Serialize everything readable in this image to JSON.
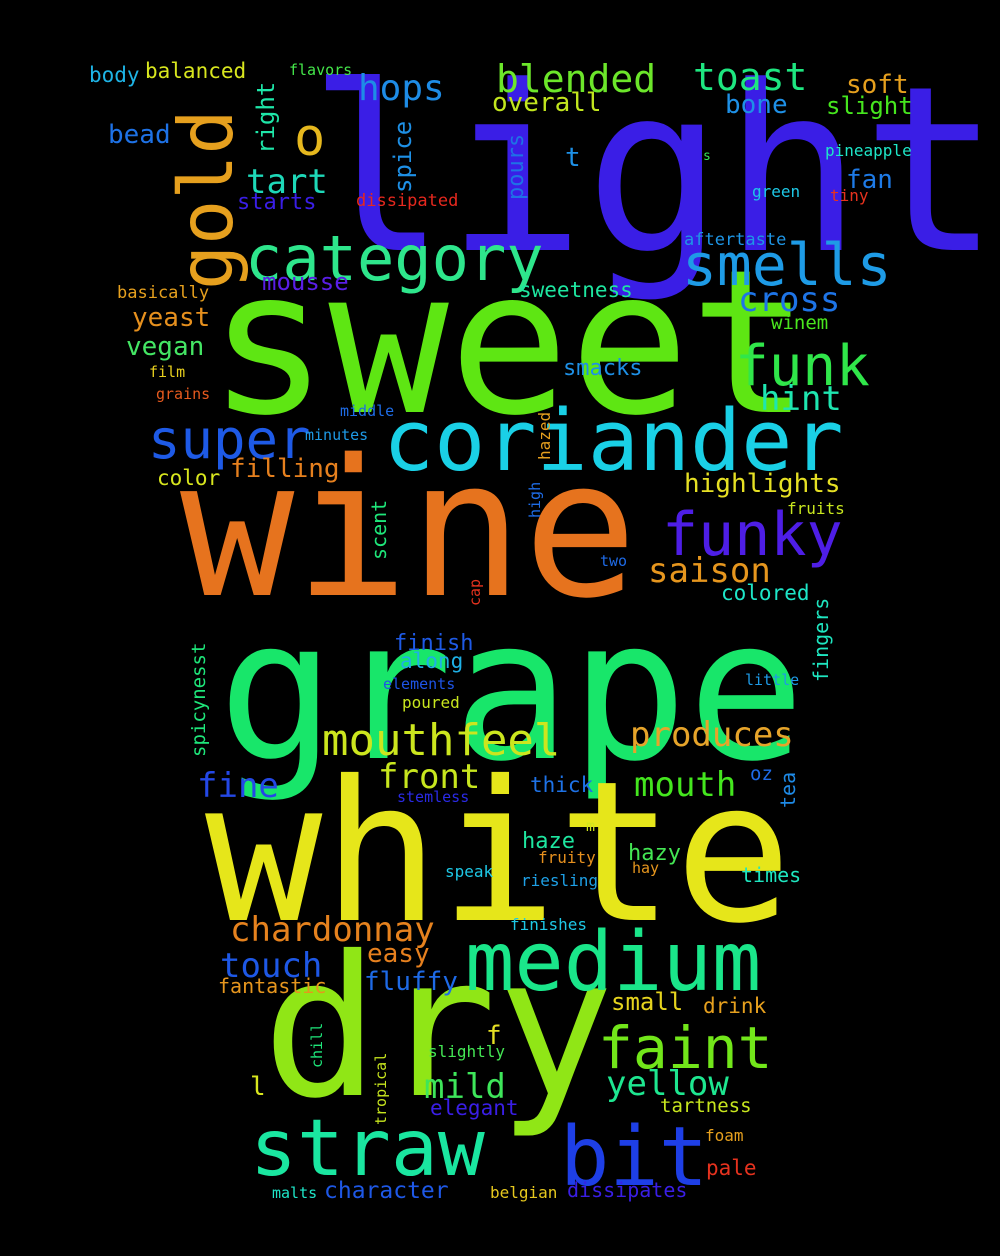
{
  "words": [
    {
      "text": "light",
      "color": "#3a1ee6"
    },
    {
      "text": "sweet",
      "color": "#5ee613"
    },
    {
      "text": "wine",
      "color": "#e6731e"
    },
    {
      "text": "grape",
      "color": "#18e66a"
    },
    {
      "text": "white",
      "color": "#e6e61a"
    },
    {
      "text": "dry",
      "color": "#90e616"
    },
    {
      "text": "coriander",
      "color": "#1ad0e6"
    },
    {
      "text": "medium",
      "color": "#1ae68a"
    },
    {
      "text": "straw",
      "color": "#1ae6a0"
    },
    {
      "text": "bit",
      "color": "#1e3fe6"
    },
    {
      "text": "gold",
      "color": "#e6a01e"
    },
    {
      "text": "category",
      "color": "#2ee68c"
    },
    {
      "text": "smells",
      "color": "#1e9be6"
    },
    {
      "text": "funk",
      "color": "#30e64a"
    },
    {
      "text": "funky",
      "color": "#4e1ee6"
    },
    {
      "text": "super",
      "color": "#1e5ae6"
    },
    {
      "text": "faint",
      "color": "#72e61a"
    },
    {
      "text": "mouthfeel",
      "color": "#cce61e"
    },
    {
      "text": "blended",
      "color": "#6ce62a"
    },
    {
      "text": "toast",
      "color": "#1ee680"
    },
    {
      "text": "hops",
      "color": "#1e8ce6"
    },
    {
      "text": "o",
      "color": "#e6b81e"
    },
    {
      "text": "tart",
      "color": "#1ed8b8"
    },
    {
      "text": "cross",
      "color": "#1e74e6"
    },
    {
      "text": "hint",
      "color": "#1ee6b0"
    },
    {
      "text": "saison",
      "color": "#e6961e"
    },
    {
      "text": "produces",
      "color": "#e6a42a"
    },
    {
      "text": "front",
      "color": "#c8e61e"
    },
    {
      "text": "mouth",
      "color": "#44e61e"
    },
    {
      "text": "fine",
      "color": "#2448e6"
    },
    {
      "text": "chardonnay",
      "color": "#e6821e"
    },
    {
      "text": "touch",
      "color": "#1e58e6"
    },
    {
      "text": "mild",
      "color": "#3ee65a"
    },
    {
      "text": "yellow",
      "color": "#1ee690"
    },
    {
      "text": "highlights",
      "color": "#e6e024"
    },
    {
      "text": "filling",
      "color": "#e6801e"
    },
    {
      "text": "soft",
      "color": "#e6a01e"
    },
    {
      "text": "slight",
      "color": "#46e61e"
    },
    {
      "text": "bone",
      "color": "#1e90e6"
    },
    {
      "text": "overall",
      "color": "#c2e61e"
    },
    {
      "text": "fan",
      "color": "#1e7ae6"
    },
    {
      "text": "mousse",
      "color": "#5a1ee6"
    },
    {
      "text": "yeast",
      "color": "#e6901e"
    },
    {
      "text": "vegan",
      "color": "#44e664"
    },
    {
      "text": "body",
      "color": "#1eb4e6"
    },
    {
      "text": "balanced",
      "color": "#d8e61e"
    },
    {
      "text": "bead",
      "color": "#1e72e6"
    },
    {
      "text": "right",
      "color": "#1ee6a8"
    },
    {
      "text": "spice",
      "color": "#1e90e6"
    },
    {
      "text": "pours",
      "color": "#1e72e6"
    },
    {
      "text": "t",
      "color": "#1e90e6"
    },
    {
      "text": "flavors",
      "color": "#44e64a"
    },
    {
      "text": "pineapple",
      "color": "#1ee6c8"
    },
    {
      "text": "s",
      "color": "#36e65a"
    },
    {
      "text": "green",
      "color": "#1ec8e6"
    },
    {
      "text": "tiny",
      "color": "#e6321e"
    },
    {
      "text": "starts",
      "color": "#3a1ee6"
    },
    {
      "text": "dissipated",
      "color": "#e6281e"
    },
    {
      "text": "aftertaste",
      "color": "#1e96e6"
    },
    {
      "text": "basically",
      "color": "#e6a01e"
    },
    {
      "text": "sweetness",
      "color": "#1ee6a0"
    },
    {
      "text": "winem",
      "color": "#4ae61e"
    },
    {
      "text": "smacks",
      "color": "#1e90e6"
    },
    {
      "text": "film",
      "color": "#e6ce1e"
    },
    {
      "text": "grains",
      "color": "#e65a1e"
    },
    {
      "text": "middle",
      "color": "#1e6ce6"
    },
    {
      "text": "minutes",
      "color": "#1e9ae6"
    },
    {
      "text": "hazed",
      "color": "#e6a01e"
    },
    {
      "text": "color",
      "color": "#d8e61e"
    },
    {
      "text": "high",
      "color": "#1e6ce6"
    },
    {
      "text": "fruits",
      "color": "#c8e61e"
    },
    {
      "text": "scent",
      "color": "#1ee67a"
    },
    {
      "text": "two",
      "color": "#1e6ae6"
    },
    {
      "text": "cap",
      "color": "#e6321e"
    },
    {
      "text": "colored",
      "color": "#1ee6c8"
    },
    {
      "text": "fingers",
      "color": "#1ee6c0"
    },
    {
      "text": "finish",
      "color": "#1e5ae6"
    },
    {
      "text": "along",
      "color": "#1eb0e6"
    },
    {
      "text": "elements",
      "color": "#1e54e6"
    },
    {
      "text": "poured",
      "color": "#c8e61e"
    },
    {
      "text": "little",
      "color": "#1e9ae6"
    },
    {
      "text": "spicynesst",
      "color": "#1ee67a"
    },
    {
      "text": "oz",
      "color": "#1e6ae6"
    },
    {
      "text": "tea",
      "color": "#1e8ae6"
    },
    {
      "text": "thick",
      "color": "#1e72e6"
    },
    {
      "text": "stemless",
      "color": "#2a2ae6"
    },
    {
      "text": "m",
      "color": "#d0e61e"
    },
    {
      "text": "haze",
      "color": "#1ee6a0"
    },
    {
      "text": "hazy",
      "color": "#44e654"
    },
    {
      "text": "fruity",
      "color": "#e6901e"
    },
    {
      "text": "speak",
      "color": "#1ec8e6"
    },
    {
      "text": "riesling",
      "color": "#1ea0e6"
    },
    {
      "text": "hay",
      "color": "#e6961e"
    },
    {
      "text": "times",
      "color": "#1ee6c0"
    },
    {
      "text": "finishes",
      "color": "#1ec8e6"
    },
    {
      "text": "easy",
      "color": "#e6801e"
    },
    {
      "text": "fluffy",
      "color": "#1e6ae6"
    },
    {
      "text": "fantastic",
      "color": "#e6961e"
    },
    {
      "text": "small",
      "color": "#e6d41e"
    },
    {
      "text": "drink",
      "color": "#e6a01e"
    },
    {
      "text": "f",
      "color": "#e6e024"
    },
    {
      "text": "chill",
      "color": "#1ee67a"
    },
    {
      "text": "l",
      "color": "#d8e61e"
    },
    {
      "text": "slightly",
      "color": "#44e654"
    },
    {
      "text": "tropical",
      "color": "#c8e61e"
    },
    {
      "text": "elegant",
      "color": "#3a1ee6"
    },
    {
      "text": "tartness",
      "color": "#c8e61e"
    },
    {
      "text": "foam",
      "color": "#e6a01e"
    },
    {
      "text": "pale",
      "color": "#e6321e"
    },
    {
      "text": "malts",
      "color": "#1ee6c8"
    },
    {
      "text": "character",
      "color": "#1e58e6"
    },
    {
      "text": "belgian",
      "color": "#e6c81e"
    },
    {
      "text": "dissipates",
      "color": "#3a1ee6"
    }
  ]
}
